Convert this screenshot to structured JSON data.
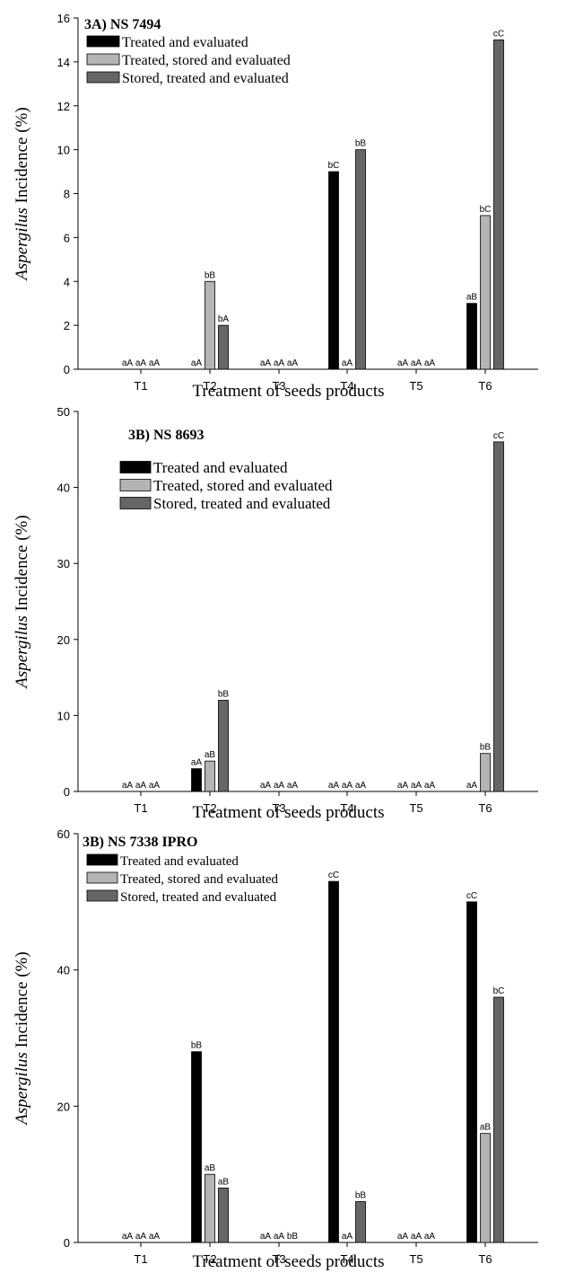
{
  "chart_data": [
    {
      "type": "bar",
      "title": "3A) NS 7494",
      "xlabel": "Treatment of seeds products",
      "ylabel_italic": "Aspergilus",
      "ylabel_rest": "Incidence (%)",
      "ylim": [
        0,
        16
      ],
      "yticks": [
        "0",
        "2",
        "4",
        "6",
        "8",
        "10",
        "12",
        "14",
        "16"
      ],
      "categories": [
        "T1",
        "T2",
        "T3",
        "T4",
        "T5",
        "T6"
      ],
      "legend_position": "top-left",
      "series": [
        {
          "name": "Treated and evaluated",
          "color": "#000000",
          "values": [
            0,
            0,
            0,
            9,
            0,
            3
          ],
          "labels": [
            "aA",
            "aA",
            "aA",
            "bC",
            "aA",
            "aB"
          ]
        },
        {
          "name": "Treated, stored and evaluated",
          "color": "#b4b4b4",
          "values": [
            0,
            4,
            0,
            0,
            0,
            7
          ],
          "labels": [
            "aA",
            "bB",
            "aA",
            "aA",
            "aA",
            "bC"
          ]
        },
        {
          "name": "Stored, treated and evaluated",
          "color": "#666666",
          "values": [
            0,
            2,
            0,
            10,
            0,
            15
          ],
          "labels": [
            "aA",
            "bA",
            "aA",
            "bB",
            "aA",
            "cC"
          ]
        }
      ]
    },
    {
      "type": "bar",
      "title": "3B) NS 8693",
      "xlabel": "Treatment of seeds products",
      "ylabel_italic": "Aspergilus",
      "ylabel_rest": "Incidence (%)",
      "ylim": [
        0,
        50
      ],
      "yticks": [
        "0",
        "10",
        "20",
        "30",
        "40",
        "50"
      ],
      "categories": [
        "T1",
        "T2",
        "T3",
        "T4",
        "T5",
        "T6"
      ],
      "legend_position": "top-left",
      "series": [
        {
          "name": "Treated and evaluated",
          "color": "#000000",
          "values": [
            0,
            3,
            0,
            0,
            0,
            0
          ],
          "labels": [
            "aA",
            "aA",
            "aA",
            "aA",
            "aA",
            "aA"
          ]
        },
        {
          "name": "Treated, stored and evaluated",
          "color": "#b4b4b4",
          "values": [
            0,
            4,
            0,
            0,
            0,
            5
          ],
          "labels": [
            "aA",
            "aB",
            "aA",
            "aA",
            "aA",
            "bB"
          ]
        },
        {
          "name": "Stored, treated and evaluated",
          "color": "#666666",
          "values": [
            0,
            12,
            0,
            0,
            0,
            46
          ],
          "labels": [
            "aA",
            "bB",
            "aA",
            "aA",
            "aA",
            "cC"
          ]
        }
      ]
    },
    {
      "type": "bar",
      "title": "3B) NS 7338 IPRO",
      "xlabel": "Treatment of seeds products",
      "ylabel_italic": "Aspergilus",
      "ylabel_rest": "Incidence (%)",
      "ylim": [
        0,
        60
      ],
      "yticks": [
        "0",
        "20",
        "40",
        "60"
      ],
      "categories": [
        "T1",
        "T2",
        "T3",
        "T4",
        "T5",
        "T6"
      ],
      "legend_position": "top-left",
      "series": [
        {
          "name": "Treated and evaluated",
          "color": "#000000",
          "values": [
            0,
            28,
            0,
            53,
            0,
            50
          ],
          "labels": [
            "aA",
            "bB",
            "aA",
            "cC",
            "aA",
            "cC"
          ]
        },
        {
          "name": "Treated, stored and evaluated",
          "color": "#b4b4b4",
          "values": [
            0,
            10,
            0,
            0,
            0,
            16
          ],
          "labels": [
            "aA",
            "aB",
            "aA",
            "aA",
            "aA",
            "aB"
          ]
        },
        {
          "name": "Stored, treated and evaluated",
          "color": "#666666",
          "values": [
            0,
            8,
            0,
            6,
            0,
            36
          ],
          "labels": [
            "aA",
            "aB",
            "bB",
            "bB",
            "aA",
            "bC"
          ]
        }
      ]
    }
  ]
}
